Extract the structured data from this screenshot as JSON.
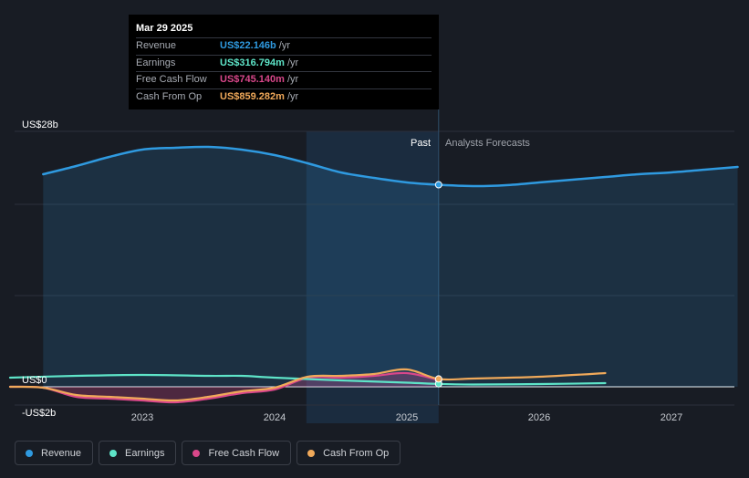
{
  "tooltip": {
    "date": "Mar 29 2025",
    "rows": [
      {
        "label": "Revenue",
        "value": "US$22.146b",
        "unit": "/yr",
        "color": "#2f9ae0"
      },
      {
        "label": "Earnings",
        "value": "US$316.794m",
        "unit": "/yr",
        "color": "#5ee4c8"
      },
      {
        "label": "Free Cash Flow",
        "value": "US$745.140m",
        "unit": "/yr",
        "color": "#d9478a"
      },
      {
        "label": "Cash From Op",
        "value": "US$859.282m",
        "unit": "/yr",
        "color": "#f0a95a"
      }
    ]
  },
  "region_labels": {
    "past": "Past",
    "forecast": "Analysts Forecasts"
  },
  "chart_data": {
    "type": "line",
    "ylim": [
      -2,
      28
    ],
    "y_tick_labels": [
      {
        "value": 28,
        "label": "US$28b"
      },
      {
        "value": 0,
        "label": "US$0"
      },
      {
        "value": -2,
        "label": "-US$2b"
      }
    ],
    "x_tick_labels": [
      {
        "value": 2023,
        "label": "2023"
      },
      {
        "value": 2024,
        "label": "2024"
      },
      {
        "value": 2025,
        "label": "2025"
      },
      {
        "value": 2026,
        "label": "2026"
      },
      {
        "value": 2027,
        "label": "2027"
      }
    ],
    "xlim": [
      2021.98,
      2027.5
    ],
    "past_shade_start": 2024.24,
    "present": 2025.24,
    "legend_position": "bottom-left",
    "series": [
      {
        "name": "Revenue",
        "color": "#2f9ae0",
        "area": true,
        "values": [
          [
            2022.25,
            23.3
          ],
          [
            2022.5,
            24.2
          ],
          [
            2022.75,
            25.2
          ],
          [
            2023.0,
            26.0
          ],
          [
            2023.25,
            26.2
          ],
          [
            2023.5,
            26.3
          ],
          [
            2023.75,
            26.0
          ],
          [
            2024.0,
            25.4
          ],
          [
            2024.25,
            24.5
          ],
          [
            2024.5,
            23.5
          ],
          [
            2024.75,
            22.9
          ],
          [
            2025.0,
            22.4
          ],
          [
            2025.24,
            22.146
          ],
          [
            2025.5,
            22.0
          ],
          [
            2025.75,
            22.1
          ],
          [
            2026.0,
            22.4
          ],
          [
            2026.25,
            22.7
          ],
          [
            2026.5,
            23.0
          ],
          [
            2026.75,
            23.3
          ],
          [
            2027.0,
            23.5
          ],
          [
            2027.25,
            23.8
          ],
          [
            2027.5,
            24.1
          ]
        ]
      },
      {
        "name": "Earnings",
        "color": "#5ee4c8",
        "area": false,
        "values": [
          [
            2022.0,
            1.0
          ],
          [
            2022.5,
            1.2
          ],
          [
            2023.0,
            1.3
          ],
          [
            2023.5,
            1.2
          ],
          [
            2023.75,
            1.2
          ],
          [
            2024.0,
            1.0
          ],
          [
            2024.5,
            0.7
          ],
          [
            2025.0,
            0.45
          ],
          [
            2025.24,
            0.32
          ],
          [
            2025.5,
            0.25
          ],
          [
            2026.0,
            0.3
          ],
          [
            2026.5,
            0.4
          ]
        ]
      },
      {
        "name": "Free Cash Flow",
        "color": "#d9478a",
        "area": true,
        "values": [
          [
            2022.0,
            0.0
          ],
          [
            2022.25,
            -0.1
          ],
          [
            2022.5,
            -1.1
          ],
          [
            2022.75,
            -1.3
          ],
          [
            2023.0,
            -1.5
          ],
          [
            2023.25,
            -1.7
          ],
          [
            2023.5,
            -1.3
          ],
          [
            2023.75,
            -0.7
          ],
          [
            2024.0,
            -0.3
          ],
          [
            2024.25,
            1.0
          ],
          [
            2024.5,
            1.0
          ],
          [
            2024.75,
            1.2
          ],
          [
            2025.0,
            1.5
          ],
          [
            2025.24,
            0.745
          ]
        ]
      },
      {
        "name": "Cash From Op",
        "color": "#f0a95a",
        "area": false,
        "values": [
          [
            2022.0,
            0.0
          ],
          [
            2022.25,
            -0.1
          ],
          [
            2022.5,
            -0.9
          ],
          [
            2022.75,
            -1.1
          ],
          [
            2023.0,
            -1.3
          ],
          [
            2023.25,
            -1.5
          ],
          [
            2023.5,
            -1.1
          ],
          [
            2023.75,
            -0.5
          ],
          [
            2024.0,
            -0.1
          ],
          [
            2024.25,
            1.1
          ],
          [
            2024.5,
            1.2
          ],
          [
            2024.75,
            1.4
          ],
          [
            2025.0,
            1.9
          ],
          [
            2025.24,
            0.859
          ],
          [
            2025.5,
            0.9
          ],
          [
            2026.0,
            1.1
          ],
          [
            2026.5,
            1.5
          ]
        ]
      }
    ]
  },
  "legend": [
    {
      "label": "Revenue",
      "color": "#2f9ae0"
    },
    {
      "label": "Earnings",
      "color": "#5ee4c8"
    },
    {
      "label": "Free Cash Flow",
      "color": "#d9478a"
    },
    {
      "label": "Cash From Op",
      "color": "#f0a95a"
    }
  ]
}
